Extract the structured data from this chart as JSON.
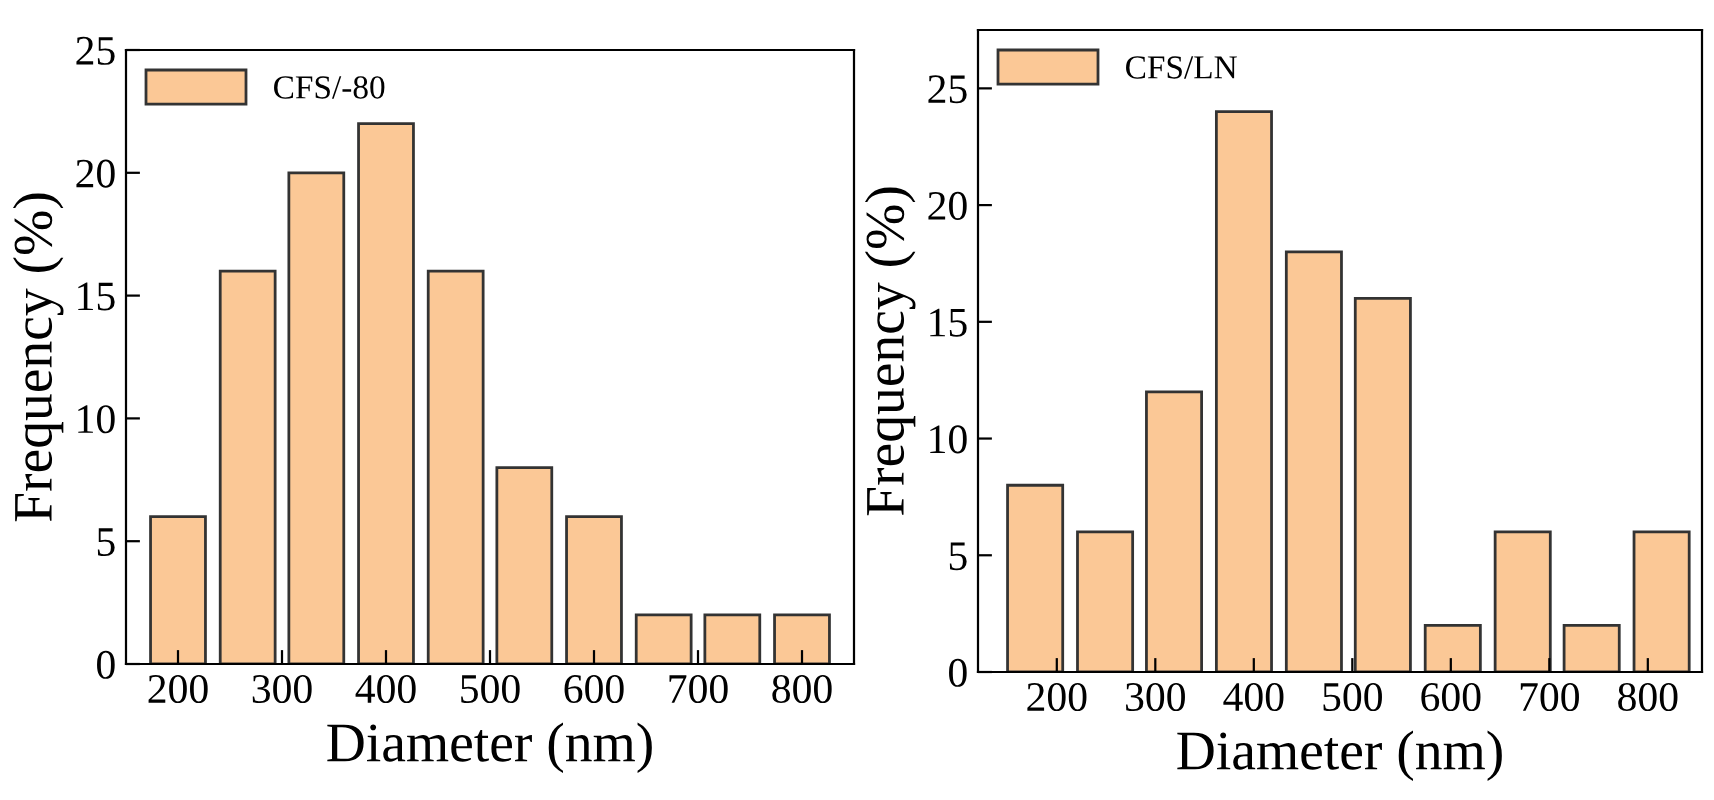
{
  "chart_data": [
    {
      "type": "bar",
      "xlabel": "Diameter (nm)",
      "ylabel": "Frequency (%)",
      "x": [
        200,
        267,
        333,
        400,
        467,
        533,
        600,
        667,
        733,
        800
      ],
      "series": [
        {
          "name": "CFS/-80",
          "color": "#fbc896",
          "values": [
            6,
            16,
            20,
            22,
            16,
            8,
            6,
            2,
            2,
            2
          ]
        }
      ],
      "xlim": [
        150,
        850
      ],
      "xticks": [
        200,
        300,
        400,
        500,
        600,
        700,
        800
      ],
      "ylim": [
        0,
        25
      ],
      "yticks": [
        0,
        5,
        10,
        15,
        20,
        25
      ],
      "legend": "top left"
    },
    {
      "type": "bar",
      "xlabel": "Diameter (nm)",
      "ylabel": "Frequency (%)",
      "x": [
        178,
        249,
        319,
        390,
        461,
        531,
        602,
        673,
        743,
        814
      ],
      "series": [
        {
          "name": "CFS/LN",
          "color": "#fbc896",
          "values": [
            8,
            6,
            12,
            24,
            18,
            16,
            2,
            6,
            2,
            6
          ]
        }
      ],
      "xlim": [
        120,
        855
      ],
      "xticks": [
        200,
        300,
        400,
        500,
        600,
        700,
        800
      ],
      "ylim": [
        0,
        27.5
      ],
      "yticks": [
        0,
        5,
        10,
        15,
        20,
        25
      ],
      "legend": "top left"
    }
  ]
}
